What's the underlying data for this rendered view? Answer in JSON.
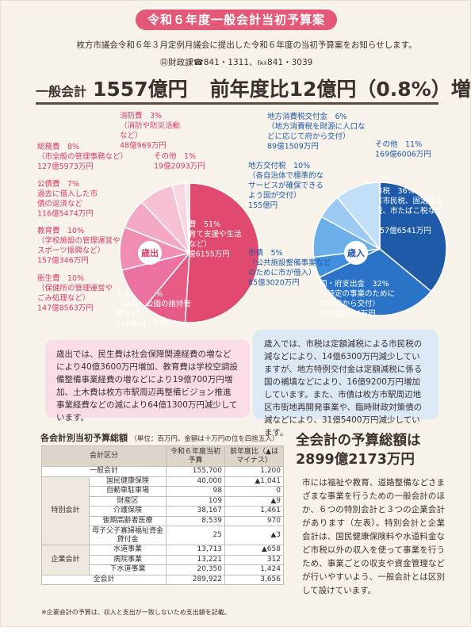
{
  "title": "令和６年度一般会計当初予算案",
  "intro": "枚方市議会令和６年３月定例月議会に提出した令和６年度の当初予算案をお知らせします。",
  "contact": "㊐財政課☎841・1311、℻841・3039",
  "headline": {
    "label": "一般会計",
    "total": "1557億円",
    "compare": "前年度比12億円（0.8%）増"
  },
  "chart_data": [
    {
      "type": "pie",
      "center_label": "歳出",
      "series": [
        {
          "name": "民生費",
          "percent": 51,
          "amount": "792億6155万円",
          "detail": "（子育て支援や生活保護など）",
          "color": "#e04a6e",
          "label_color": "#ffffff"
        },
        {
          "name": "土木費",
          "percent": 10,
          "amount": "148億427万円",
          "detail": "（道路・公園の維持管理など）",
          "color": "#e65c85",
          "label_color": "#ffffff"
        },
        {
          "name": "衛生費",
          "percent": 10,
          "amount": "147億8563万円",
          "detail": "（保健所の管理運営やごみ処理など）",
          "color": "#eb72a0",
          "label_color": "#d83a6a"
        },
        {
          "name": "教育費",
          "percent": 10,
          "amount": "157億346万円",
          "detail": "（学校施設の管理運営やスポーツ振興など）",
          "color": "#ef8db2",
          "label_color": "#d83a6a"
        },
        {
          "name": "公債費",
          "percent": 7,
          "amount": "116億5474万円",
          "detail": "過去に借入した市債の返済など",
          "color": "#f3a9c5",
          "label_color": "#d83a6a"
        },
        {
          "name": "総務費",
          "percent": 8,
          "amount": "127億5973万円",
          "detail": "（市全般の管理事務など）",
          "color": "#f6c1d4",
          "label_color": "#d83a6a"
        },
        {
          "name": "消防費",
          "percent": 3,
          "amount": "48億969万円",
          "detail": "（消防や防災活動など）",
          "color": "#f9d4e1",
          "label_color": "#d83a6a"
        },
        {
          "name": "その他",
          "percent": 1,
          "amount": "19億2093万円",
          "detail": "",
          "color": "#fbe3eb",
          "label_color": "#d83a6a"
        }
      ]
    },
    {
      "type": "pie",
      "center_label": "歳入",
      "series": [
        {
          "name": "市税",
          "percent": 36,
          "amount": "557億6541万円",
          "detail": "（市民税、固定資産税、市たばこ税など）",
          "color": "#1e5aa8",
          "label_color": "#ffffff"
        },
        {
          "name": "国・府支出金",
          "percent": 32,
          "amount": "500億2924万円",
          "detail": "（特定の事業のために国や府から交付）",
          "color": "#2a73c7",
          "label_color": "#ffffff"
        },
        {
          "name": "市債",
          "percent": 5,
          "amount": "85億3020万円",
          "detail": "（公共施設整備事業などのために市が借入）",
          "color": "#3f8fdc",
          "label_color": "#1e5aa8"
        },
        {
          "name": "地方交付税",
          "percent": 10,
          "amount": "155億円",
          "detail": "（各自治体で標準的なサービスが確保できるよう国が交付）",
          "color": "#6aaeea",
          "label_color": "#1e5aa8"
        },
        {
          "name": "地方消費税交付金",
          "percent": 6,
          "amount": "89億1509万円",
          "detail": "（地方消費税を財源に人口などに応じて府から交付）",
          "color": "#9ccaf2",
          "label_color": "#1e5aa8"
        },
        {
          "name": "その他",
          "percent": 11,
          "amount": "169億6006万円",
          "detail": "",
          "color": "#c2dff7",
          "label_color": "#1e5aa8"
        }
      ]
    }
  ],
  "note_expenditure": "歳出では、民生費は社会保障関連経費の増などにより40億3600万円増加、教育費は学校空調設備整備事業経費の増などにより19億700万円増加、土木費は枚方市駅周辺再整備ビジョン推進事業経費などの減により64億1300万円減少しています。",
  "note_revenue": "歳入では、市税は定額減税による市民税の減などにより、14億6300万円減少していますが、地方特例交付金は定額減税に係る国の補填などにより、16億9200万円増加しています。また、市債は枚方市駅周辺地区市街地再開発事業や、臨時財政対策債の減などにより、31億5400万円減少しています。",
  "table": {
    "title": "各会計別当初予算総額",
    "unit_note": "（単位：百万円、金額は十万円の位を四捨五入）",
    "header": {
      "category": "会計区分",
      "budget": "令和６年度当初予算",
      "change": "前年度比（▲はマイナス）"
    },
    "general": {
      "label": "一般会計",
      "budget": "155,700",
      "change": "1,200"
    },
    "special_group": "特別会計",
    "special": [
      {
        "label": "国民健康保険",
        "budget": "40,000",
        "change": "▲1,041"
      },
      {
        "label": "自動車駐車場",
        "budget": "98",
        "change": "0"
      },
      {
        "label": "財産区",
        "budget": "109",
        "change": "▲9"
      },
      {
        "label": "介護保険",
        "budget": "38,167",
        "change": "1,461"
      },
      {
        "label": "後期高齢者医療",
        "budget": "8,539",
        "change": "970"
      },
      {
        "label": "母子父子寡婦福祉資金貸付金",
        "budget": "25",
        "change": "▲3"
      }
    ],
    "enterprise_group": "企業会計",
    "enterprise": [
      {
        "label": "水道事業",
        "budget": "13,713",
        "change": "▲658"
      },
      {
        "label": "病院事業",
        "budget": "13,221",
        "change": "312"
      },
      {
        "label": "下水道事業",
        "budget": "20,350",
        "change": "1,424"
      }
    ],
    "total": {
      "label": "全会計",
      "budget": "289,922",
      "change": "3,656"
    },
    "footnote": "※企業会計の予算は、収入と支出が一致しないため支出額を記載。"
  },
  "summary_title": "全会計の予算総額は2899億2173万円",
  "summary_body": "市には福祉や教育、道路整備などさまざまな事業を行うための一般会計のほか、６つの特別会計と３つの企業会計があります（左表）。特別会計と企業会計は、国民健康保険料や水道料金など市税以外の収入を使って事業を行うため、事業ごとの収支や資金管理などが行いやすいよう、一般会計とは区別して設けています。"
}
